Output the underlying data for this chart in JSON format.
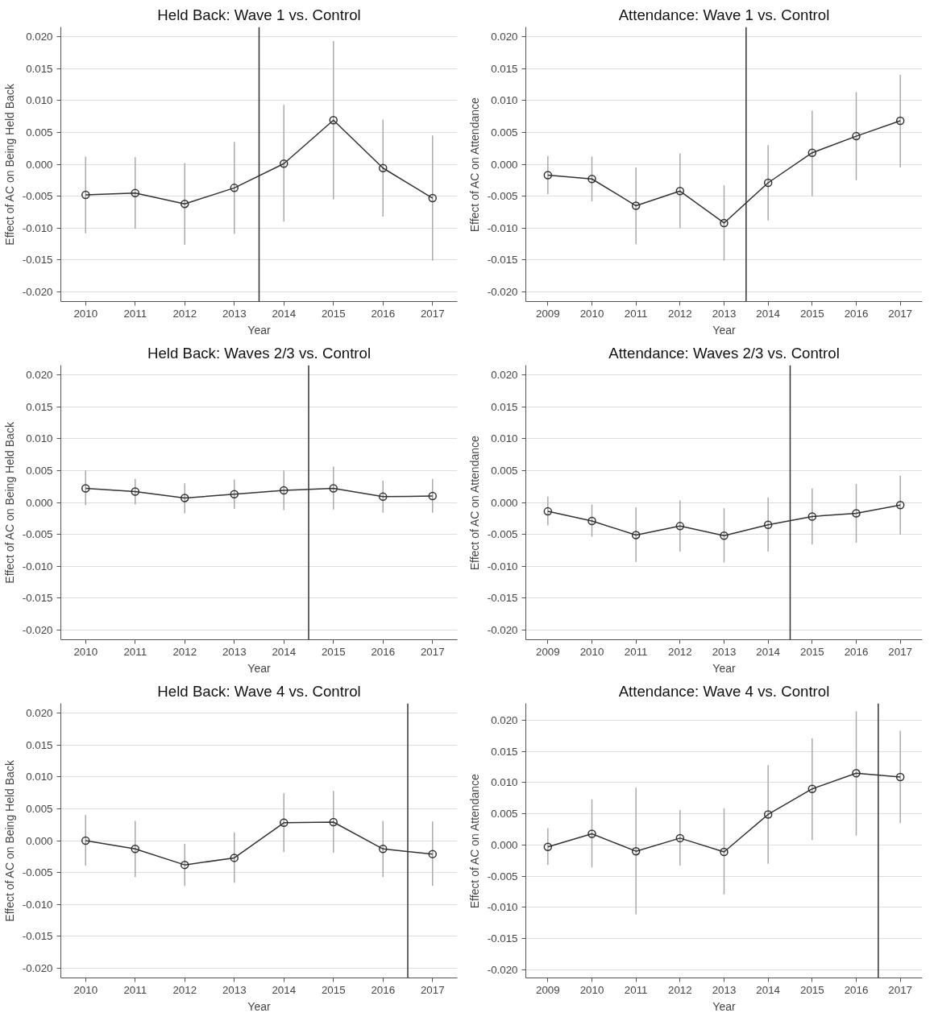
{
  "chart_data": [
    {
      "type": "line",
      "title": "Held Back: Wave 1 vs. Control",
      "xlabel": "Year",
      "ylabel": "Effect of AC on Being Held Back",
      "x": [
        2010,
        2011,
        2012,
        2013,
        2014,
        2015,
        2016,
        2017
      ],
      "series": [
        {
          "color": "#333333",
          "values": [
            -0.0048,
            -0.0045,
            -0.0062,
            -0.0037,
            0.0001,
            0.0069,
            -0.0006,
            -0.0053
          ],
          "errors": [
            [
              -0.0108,
              0.0012
            ],
            [
              -0.0101,
              0.0011
            ],
            [
              -0.0126,
              0.0002
            ],
            [
              -0.0109,
              0.0035
            ],
            [
              -0.009,
              0.0093
            ],
            [
              -0.0055,
              0.0193
            ],
            [
              -0.0082,
              0.007
            ],
            [
              -0.0151,
              0.0045
            ]
          ]
        }
      ],
      "xlim": [
        2009.5,
        2017.5
      ],
      "ylim": [
        -0.0215,
        0.0215
      ],
      "xticks": [
        2010,
        2011,
        2012,
        2013,
        2014,
        2015,
        2016,
        2017
      ],
      "yticks": [
        {
          "value": -0.02,
          "label": "-0.020"
        },
        {
          "value": -0.015,
          "label": "-0.015"
        },
        {
          "value": -0.01,
          "label": "-0.010"
        },
        {
          "value": -0.005,
          "label": "-0.005"
        },
        {
          "value": 0,
          "label": "0.000"
        },
        {
          "value": 0.005,
          "label": "0.005"
        },
        {
          "value": 0.01,
          "label": "0.010"
        },
        {
          "value": 0.015,
          "label": "0.015"
        },
        {
          "value": 0.02,
          "label": "0.020"
        }
      ],
      "ref_lines": [
        {
          "axis": "x",
          "value": 2013.5,
          "color": "#333333"
        }
      ],
      "grid": "y",
      "marker": "circle",
      "line_style": "solid"
    },
    {
      "type": "line",
      "title": "Attendance: Wave 1 vs. Control",
      "xlabel": "Year",
      "ylabel": "Effect of AC on Attendance",
      "x": [
        2009,
        2010,
        2011,
        2012,
        2013,
        2014,
        2015,
        2016,
        2017
      ],
      "series": [
        {
          "color": "#333333",
          "values": [
            -0.0017,
            -0.0023,
            -0.0065,
            -0.0042,
            -0.0092,
            -0.0029,
            0.0018,
            0.0044,
            0.0068
          ],
          "errors": [
            [
              -0.0047,
              0.0013
            ],
            [
              -0.0058,
              0.0012
            ],
            [
              -0.0125,
              -0.0005
            ],
            [
              -0.01,
              0.0017
            ],
            [
              -0.0151,
              -0.0033
            ],
            [
              -0.0088,
              0.003
            ],
            [
              -0.005,
              0.0084
            ],
            [
              -0.0025,
              0.0113
            ],
            [
              -0.0005,
              0.014
            ]
          ]
        }
      ],
      "xlim": [
        2008.5,
        2017.5
      ],
      "ylim": [
        -0.0215,
        0.0215
      ],
      "xticks": [
        2009,
        2010,
        2011,
        2012,
        2013,
        2014,
        2015,
        2016,
        2017
      ],
      "yticks": [
        {
          "value": -0.02,
          "label": "-0.020"
        },
        {
          "value": -0.015,
          "label": "-0.015"
        },
        {
          "value": -0.01,
          "label": "-0.010"
        },
        {
          "value": -0.005,
          "label": "-0.005"
        },
        {
          "value": 0,
          "label": "0.000"
        },
        {
          "value": 0.005,
          "label": "0.005"
        },
        {
          "value": 0.01,
          "label": "0.010"
        },
        {
          "value": 0.015,
          "label": "0.015"
        },
        {
          "value": 0.02,
          "label": "0.020"
        }
      ],
      "ref_lines": [
        {
          "axis": "x",
          "value": 2013.5,
          "color": "#333333"
        }
      ],
      "grid": "y",
      "marker": "circle",
      "line_style": "solid"
    },
    {
      "type": "line",
      "title": "Held Back: Waves 2/3 vs. Control",
      "xlabel": "Year",
      "ylabel": "Effect of AC on Being Held Back",
      "x": [
        2010,
        2011,
        2012,
        2013,
        2014,
        2015,
        2016,
        2017
      ],
      "series": [
        {
          "color": "#333333",
          "values": [
            0.0022,
            0.0017,
            0.0007,
            0.0013,
            0.0019,
            0.0022,
            0.0009,
            0.001
          ],
          "errors": [
            [
              -0.0004,
              0.005
            ],
            [
              -0.0003,
              0.0037
            ],
            [
              -0.0017,
              0.003
            ],
            [
              -0.001,
              0.0036
            ],
            [
              -0.0012,
              0.005
            ],
            [
              -0.0011,
              0.0056
            ],
            [
              -0.0016,
              0.0034
            ],
            [
              -0.0016,
              0.0037
            ]
          ]
        }
      ],
      "xlim": [
        2009.5,
        2017.5
      ],
      "ylim": [
        -0.0215,
        0.0215
      ],
      "xticks": [
        2010,
        2011,
        2012,
        2013,
        2014,
        2015,
        2016,
        2017
      ],
      "yticks": [
        {
          "value": -0.02,
          "label": "-0.020"
        },
        {
          "value": -0.015,
          "label": "-0.015"
        },
        {
          "value": -0.01,
          "label": "-0.010"
        },
        {
          "value": -0.005,
          "label": "-0.005"
        },
        {
          "value": 0,
          "label": "0.000"
        },
        {
          "value": 0.005,
          "label": "0.005"
        },
        {
          "value": 0.01,
          "label": "0.010"
        },
        {
          "value": 0.015,
          "label": "0.015"
        },
        {
          "value": 0.02,
          "label": "0.020"
        }
      ],
      "ref_lines": [
        {
          "axis": "x",
          "value": 2014.5,
          "color": "#333333"
        }
      ],
      "grid": "y",
      "marker": "circle",
      "line_style": "solid"
    },
    {
      "type": "line",
      "title": "Attendance: Waves 2/3 vs. Control",
      "xlabel": "Year",
      "ylabel": "Effect of AC on Attendance",
      "x": [
        2009,
        2010,
        2011,
        2012,
        2013,
        2014,
        2015,
        2016,
        2017
      ],
      "series": [
        {
          "color": "#333333",
          "values": [
            -0.0014,
            -0.0029,
            -0.0051,
            -0.0037,
            -0.0052,
            -0.0035,
            -0.0022,
            -0.0017,
            -0.0004
          ],
          "errors": [
            [
              -0.0036,
              0.0009
            ],
            [
              -0.0054,
              -0.0003
            ],
            [
              -0.0093,
              -0.0008
            ],
            [
              -0.0077,
              0.0003
            ],
            [
              -0.0094,
              -0.0009
            ],
            [
              -0.0077,
              0.0008
            ],
            [
              -0.0066,
              0.0022
            ],
            [
              -0.0063,
              0.0029
            ],
            [
              -0.005,
              0.0042
            ]
          ]
        }
      ],
      "xlim": [
        2008.5,
        2017.5
      ],
      "ylim": [
        -0.0215,
        0.0215
      ],
      "xticks": [
        2009,
        2010,
        2011,
        2012,
        2013,
        2014,
        2015,
        2016,
        2017
      ],
      "yticks": [
        {
          "value": -0.02,
          "label": "-0.020"
        },
        {
          "value": -0.015,
          "label": "-0.015"
        },
        {
          "value": -0.01,
          "label": "-0.010"
        },
        {
          "value": -0.005,
          "label": "-0.005"
        },
        {
          "value": 0,
          "label": "0.000"
        },
        {
          "value": 0.005,
          "label": "0.005"
        },
        {
          "value": 0.01,
          "label": "0.010"
        },
        {
          "value": 0.015,
          "label": "0.015"
        },
        {
          "value": 0.02,
          "label": "0.020"
        }
      ],
      "ref_lines": [
        {
          "axis": "x",
          "value": 2014.5,
          "color": "#333333"
        }
      ],
      "grid": "y",
      "marker": "circle",
      "line_style": "solid"
    },
    {
      "type": "line",
      "title": "Held Back: Wave 4 vs. Control",
      "xlabel": "Year",
      "ylabel": "Effect of AC on Being Held Back",
      "x": [
        2010,
        2011,
        2012,
        2013,
        2014,
        2015,
        2016,
        2017
      ],
      "series": [
        {
          "color": "#333333",
          "values": [
            0.0,
            -0.0013,
            -0.0038,
            -0.0027,
            0.0028,
            0.0029,
            -0.0013,
            -0.0021
          ],
          "errors": [
            [
              -0.0039,
              0.004
            ],
            [
              -0.0057,
              0.0031
            ],
            [
              -0.0071,
              -0.0005
            ],
            [
              -0.0066,
              0.0013
            ],
            [
              -0.0018,
              0.0074
            ],
            [
              -0.0019,
              0.0078
            ],
            [
              -0.0057,
              0.0031
            ],
            [
              -0.0071,
              0.003
            ]
          ]
        }
      ],
      "xlim": [
        2009.5,
        2017.5
      ],
      "ylim": [
        -0.0215,
        0.0215
      ],
      "xticks": [
        2010,
        2011,
        2012,
        2013,
        2014,
        2015,
        2016,
        2017
      ],
      "yticks": [
        {
          "value": -0.02,
          "label": "-0.020"
        },
        {
          "value": -0.015,
          "label": "-0.015"
        },
        {
          "value": -0.01,
          "label": "-0.010"
        },
        {
          "value": -0.005,
          "label": "-0.005"
        },
        {
          "value": 0,
          "label": "0.000"
        },
        {
          "value": 0.005,
          "label": "0.005"
        },
        {
          "value": 0.01,
          "label": "0.010"
        },
        {
          "value": 0.015,
          "label": "0.015"
        },
        {
          "value": 0.02,
          "label": "0.020"
        }
      ],
      "ref_lines": [
        {
          "axis": "x",
          "value": 2016.5,
          "color": "#333333"
        }
      ],
      "grid": "y",
      "marker": "circle",
      "line_style": "solid"
    },
    {
      "type": "line",
      "title": "Attendance: Wave 4 vs. Control",
      "xlabel": "Year",
      "ylabel": "Effect of AC on Attendance",
      "x": [
        2009,
        2010,
        2011,
        2012,
        2013,
        2014,
        2015,
        2016,
        2017
      ],
      "series": [
        {
          "color": "#333333",
          "values": [
            -0.0003,
            0.0018,
            -0.001,
            0.0011,
            -0.0011,
            0.0049,
            0.009,
            0.0115,
            0.0109
          ],
          "errors": [
            [
              -0.0032,
              0.0027
            ],
            [
              -0.0036,
              0.0073
            ],
            [
              -0.0111,
              0.0092
            ],
            [
              -0.0033,
              0.0056
            ],
            [
              -0.0079,
              0.0059
            ],
            [
              -0.003,
              0.0128
            ],
            [
              0.0008,
              0.0171
            ],
            [
              0.0015,
              0.0214
            ],
            [
              0.0035,
              0.0183
            ]
          ]
        }
      ],
      "xlim": [
        2008.5,
        2017.5
      ],
      "ylim": [
        -0.0213,
        0.0227
      ],
      "xticks": [
        2009,
        2010,
        2011,
        2012,
        2013,
        2014,
        2015,
        2016,
        2017
      ],
      "yticks": [
        {
          "value": -0.02,
          "label": "-0.020"
        },
        {
          "value": -0.015,
          "label": "-0.015"
        },
        {
          "value": -0.01,
          "label": "-0.010"
        },
        {
          "value": -0.005,
          "label": "-0.005"
        },
        {
          "value": 0,
          "label": "0.000"
        },
        {
          "value": 0.005,
          "label": "0.005"
        },
        {
          "value": 0.01,
          "label": "0.010"
        },
        {
          "value": 0.015,
          "label": "0.015"
        },
        {
          "value": 0.02,
          "label": "0.020"
        }
      ],
      "ref_lines": [
        {
          "axis": "x",
          "value": 2016.5,
          "color": "#333333"
        }
      ],
      "grid": "y",
      "marker": "circle",
      "line_style": "solid"
    }
  ]
}
